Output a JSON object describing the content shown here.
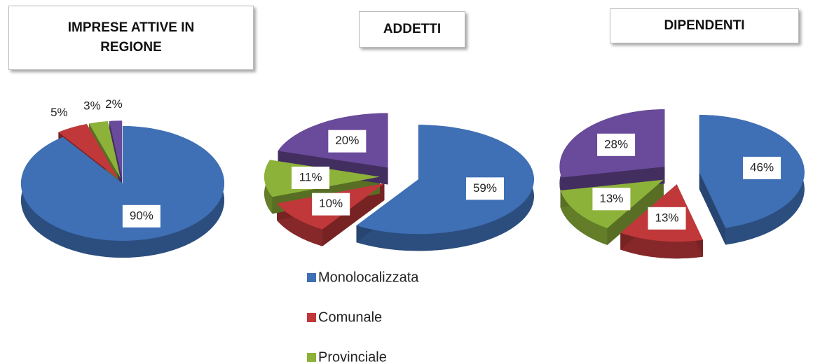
{
  "chart_data": [
    {
      "type": "pie",
      "title": "IMPRESE ATTIVE IN REGIONE",
      "values": [
        90,
        5,
        3,
        2
      ],
      "value_labels": [
        "90%",
        "5%",
        "3%",
        "2%"
      ]
    },
    {
      "type": "pie",
      "title": "ADDETTI",
      "categories": [
        "Monolocalizzata",
        "Comunale",
        "Provinciale",
        null
      ],
      "colors": [
        "#3f6fb5",
        "#c0383a",
        "#8db23a",
        "#6a4a9a"
      ],
      "values": [
        59,
        10,
        11,
        20
      ],
      "value_labels": [
        "59%",
        "10%",
        "11%",
        "20%"
      ]
    },
    {
      "type": "pie",
      "title": "DIPENDENTI",
      "values": [
        46,
        13,
        13,
        28
      ],
      "value_labels": [
        "46%",
        "13%",
        "13%",
        "28%"
      ]
    }
  ]
}
